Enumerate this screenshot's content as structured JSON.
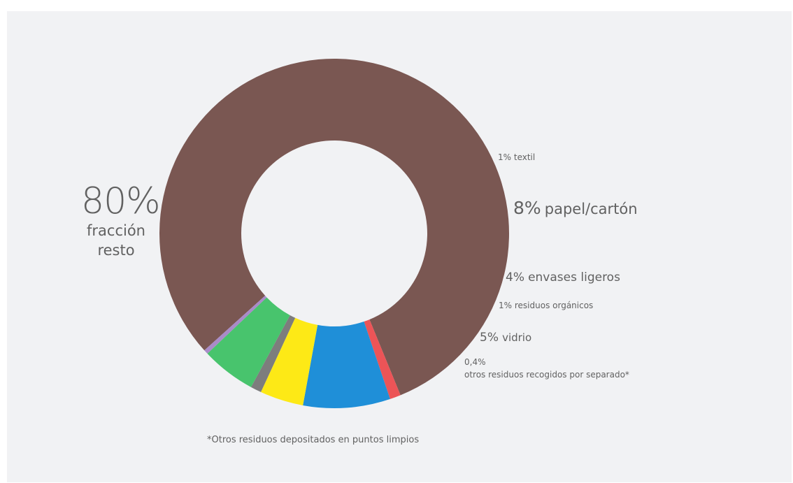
{
  "chart_data": {
    "type": "pie",
    "donut": true,
    "slices": [
      {
        "label": "fracción resto",
        "pct_text": "80%",
        "value": 80,
        "color": "#7a5752"
      },
      {
        "label": "textil",
        "pct_text": "1%",
        "value": 1,
        "color": "#ec5457"
      },
      {
        "label": "papel/cartón",
        "pct_text": "8%",
        "value": 8,
        "color": "#1f8fd8"
      },
      {
        "label": "envases ligeros",
        "pct_text": "4%",
        "value": 4,
        "color": "#fde916"
      },
      {
        "label": "residuos orgánicos",
        "pct_text": "1%",
        "value": 1,
        "color": "#7d7d7d"
      },
      {
        "label": "vidrio",
        "pct_text": "5%",
        "value": 5,
        "color": "#48c46d"
      },
      {
        "label": "otros residuos recogidos por separado*",
        "pct_text": "0,4%",
        "value": 0.4,
        "color": "#a98bc8"
      }
    ],
    "footnote": "*Otros residuos depositados en puntos limpios",
    "background": "#f1f2f4"
  }
}
